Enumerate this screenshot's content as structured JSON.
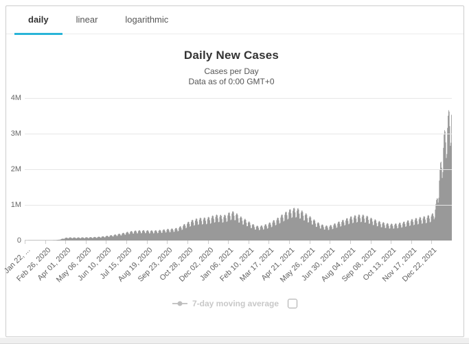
{
  "accent_color": "#28b4d8",
  "tabs": [
    {
      "label": "daily",
      "active": true
    },
    {
      "label": "linear",
      "active": false
    },
    {
      "label": "logarithmic",
      "active": false
    }
  ],
  "chart_data": {
    "type": "bar",
    "title": "Daily New Cases",
    "subtitle": "Cases per Day",
    "data_note": "Data as of 0:00 GMT+0",
    "bar_color": "#999999",
    "grid_color": "#e6e6e6",
    "axis_label_color": "#666666",
    "grid": true,
    "ylim": [
      0,
      4000000
    ],
    "yticks": [
      {
        "value": 0,
        "label": "0"
      },
      {
        "value": 1000000,
        "label": "1M"
      },
      {
        "value": 2000000,
        "label": "2M"
      },
      {
        "value": 3000000,
        "label": "3M"
      },
      {
        "value": 4000000,
        "label": "4M"
      }
    ],
    "start_date": "Jan 22, 2020",
    "total_days": 735,
    "xticks": [
      {
        "label": "Jan 22, ...",
        "day": 0
      },
      {
        "label": "Feb 26, 2020",
        "day": 35
      },
      {
        "label": "Apr 01, 2020",
        "day": 70
      },
      {
        "label": "May 06, 2020",
        "day": 105
      },
      {
        "label": "Jun 10, 2020",
        "day": 140
      },
      {
        "label": "Jul 15, 2020",
        "day": 175
      },
      {
        "label": "Aug 19, 2020",
        "day": 210
      },
      {
        "label": "Sep 23, 2020",
        "day": 245
      },
      {
        "label": "Oct 28, 2020",
        "day": 280
      },
      {
        "label": "Dec 02, 2020",
        "day": 315
      },
      {
        "label": "Jan 06, 2021",
        "day": 350
      },
      {
        "label": "Feb 10, 2021",
        "day": 385
      },
      {
        "label": "Mar 17, 2021",
        "day": 420
      },
      {
        "label": "Apr 21, 2021",
        "day": 455
      },
      {
        "label": "May 26, 2021",
        "day": 490
      },
      {
        "label": "Jun 30, 2021",
        "day": 525
      },
      {
        "label": "Aug 04, 2021",
        "day": 560
      },
      {
        "label": "Sep 08, 2021",
        "day": 595
      },
      {
        "label": "Oct 13, 2021",
        "day": 630
      },
      {
        "label": "Nov 17, 2021",
        "day": 665
      },
      {
        "label": "Dec 22, 2021",
        "day": 700
      }
    ],
    "series_note": "daily new cases worldwide; envelope is 7-day average in thousands, daily bars = envelope x weekday factor",
    "envelope_7day_avg_thousands": [
      [
        0,
        1
      ],
      [
        15,
        2
      ],
      [
        30,
        2
      ],
      [
        45,
        3
      ],
      [
        52,
        8
      ],
      [
        58,
        20
      ],
      [
        64,
        45
      ],
      [
        70,
        72
      ],
      [
        76,
        80
      ],
      [
        85,
        78
      ],
      [
        95,
        79
      ],
      [
        105,
        82
      ],
      [
        115,
        86
      ],
      [
        125,
        95
      ],
      [
        135,
        108
      ],
      [
        145,
        128
      ],
      [
        155,
        152
      ],
      [
        165,
        180
      ],
      [
        175,
        215
      ],
      [
        185,
        245
      ],
      [
        195,
        258
      ],
      [
        205,
        262
      ],
      [
        215,
        256
      ],
      [
        225,
        258
      ],
      [
        235,
        272
      ],
      [
        245,
        292
      ],
      [
        255,
        305
      ],
      [
        262,
        320
      ],
      [
        270,
        380
      ],
      [
        278,
        450
      ],
      [
        286,
        512
      ],
      [
        294,
        552
      ],
      [
        302,
        576
      ],
      [
        310,
        580
      ],
      [
        318,
        600
      ],
      [
        326,
        645
      ],
      [
        333,
        658
      ],
      [
        339,
        638
      ],
      [
        345,
        650
      ],
      [
        351,
        710
      ],
      [
        356,
        742
      ],
      [
        361,
        728
      ],
      [
        367,
        655
      ],
      [
        373,
        590
      ],
      [
        380,
        535
      ],
      [
        387,
        465
      ],
      [
        394,
        400
      ],
      [
        400,
        372
      ],
      [
        406,
        376
      ],
      [
        412,
        400
      ],
      [
        418,
        432
      ],
      [
        424,
        478
      ],
      [
        430,
        532
      ],
      [
        436,
        585
      ],
      [
        442,
        655
      ],
      [
        448,
        716
      ],
      [
        454,
        775
      ],
      [
        460,
        818
      ],
      [
        465,
        830
      ],
      [
        470,
        812
      ],
      [
        476,
        762
      ],
      [
        482,
        700
      ],
      [
        488,
        640
      ],
      [
        494,
        575
      ],
      [
        500,
        500
      ],
      [
        506,
        445
      ],
      [
        512,
        402
      ],
      [
        518,
        378
      ],
      [
        524,
        380
      ],
      [
        530,
        412
      ],
      [
        536,
        452
      ],
      [
        542,
        492
      ],
      [
        548,
        528
      ],
      [
        554,
        565
      ],
      [
        560,
        605
      ],
      [
        566,
        632
      ],
      [
        572,
        652
      ],
      [
        578,
        660
      ],
      [
        584,
        645
      ],
      [
        590,
        618
      ],
      [
        596,
        572
      ],
      [
        602,
        535
      ],
      [
        608,
        500
      ],
      [
        614,
        470
      ],
      [
        620,
        448
      ],
      [
        626,
        430
      ],
      [
        632,
        424
      ],
      [
        638,
        430
      ],
      [
        644,
        448
      ],
      [
        650,
        468
      ],
      [
        656,
        498
      ],
      [
        662,
        525
      ],
      [
        668,
        548
      ],
      [
        674,
        572
      ],
      [
        680,
        592
      ],
      [
        686,
        610
      ],
      [
        691,
        622
      ],
      [
        696,
        650
      ],
      [
        700,
        665
      ],
      [
        703,
        720
      ],
      [
        706,
        850
      ],
      [
        709,
        1100
      ],
      [
        712,
        1500
      ],
      [
        715,
        1950
      ],
      [
        718,
        2250
      ],
      [
        721,
        2700
      ],
      [
        724,
        2900
      ],
      [
        727,
        3100
      ],
      [
        730,
        3350
      ],
      [
        734,
        3460
      ]
    ],
    "weekday_factors": [
      1.1,
      1.12,
      1.08,
      0.95,
      0.78,
      0.8,
      1.02
    ],
    "legend": {
      "label": "7-day moving average",
      "checkbox_checked": false,
      "marker_color": "#c5c5c5",
      "text_color": "#c8c8c8"
    }
  }
}
